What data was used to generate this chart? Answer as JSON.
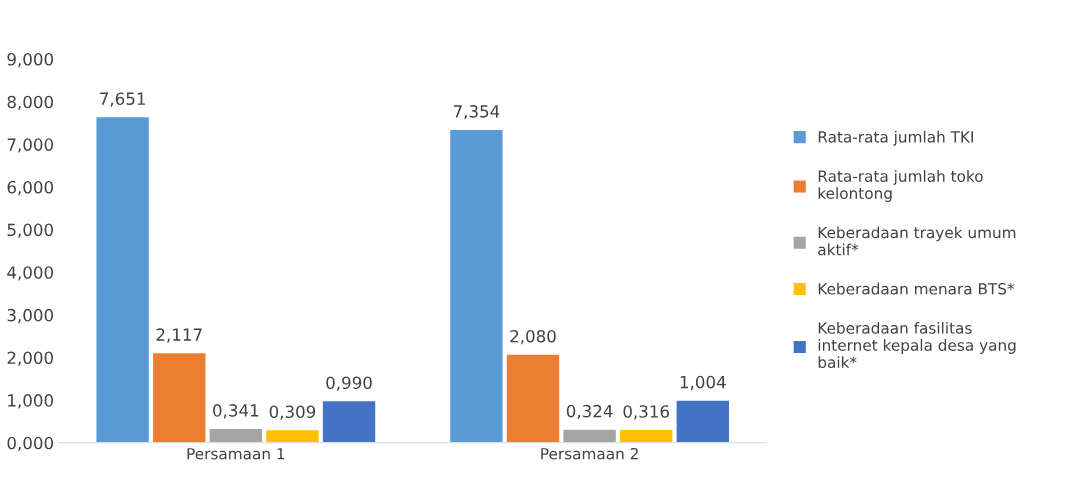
{
  "chart_data": {
    "type": "bar",
    "categories": [
      "Persamaan 1",
      "Persamaan 2"
    ],
    "series": [
      {
        "name": "Rata-rata jumlah TKI",
        "color": "#5b9bd5",
        "values": [
          7.651,
          7.354
        ],
        "value_labels": [
          "7,651",
          "7,354"
        ]
      },
      {
        "name": "Rata-rata jumlah toko kelontong",
        "color": "#ed7d31",
        "values": [
          2.117,
          2.08
        ],
        "value_labels": [
          "2,117",
          "2,080"
        ]
      },
      {
        "name": "Keberadaan trayek umum aktif*",
        "color": "#a5a5a5",
        "values": [
          0.341,
          0.324
        ],
        "value_labels": [
          "0,341",
          "0,324"
        ]
      },
      {
        "name": "Keberadaan menara BTS*",
        "color": "#ffc000",
        "values": [
          0.309,
          0.316
        ],
        "value_labels": [
          "0,309",
          "0,316"
        ]
      },
      {
        "name": "Keberadaan fasilitas internet kepala desa yang baik*",
        "color": "#4472c4",
        "values": [
          0.99,
          1.004
        ],
        "value_labels": [
          "0,990",
          "1,004"
        ]
      }
    ],
    "ylim": [
      0,
      9
    ],
    "yticks": [
      {
        "value": 0,
        "label": "0,000"
      },
      {
        "value": 1,
        "label": "1,000"
      },
      {
        "value": 2,
        "label": "2,000"
      },
      {
        "value": 3,
        "label": "3,000"
      },
      {
        "value": 4,
        "label": "4,000"
      },
      {
        "value": 5,
        "label": "5,000"
      },
      {
        "value": 6,
        "label": "6,000"
      },
      {
        "value": 7,
        "label": "7,000"
      },
      {
        "value": 8,
        "label": "8,000"
      },
      {
        "value": 9,
        "label": "9,000"
      }
    ],
    "grid": false,
    "legend": "right"
  }
}
